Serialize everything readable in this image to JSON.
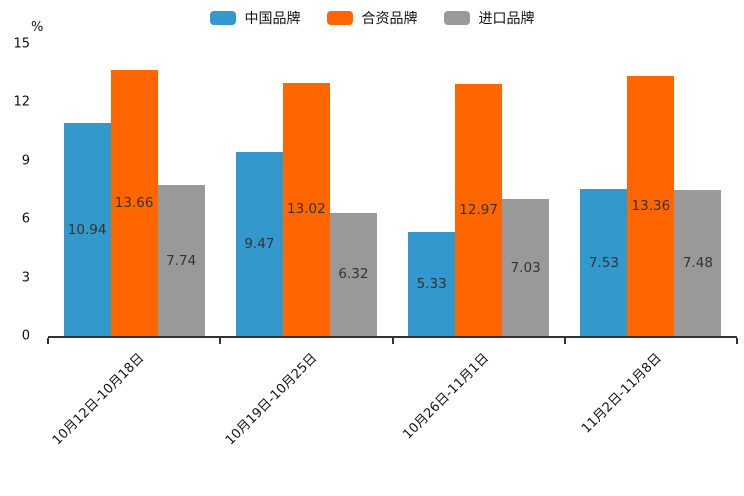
{
  "figure": {
    "background": "#ffffff",
    "axis_color": "#333333",
    "percent_label": "%"
  },
  "legend": {
    "items": [
      {
        "label": "中国品牌",
        "color": "#3398cc"
      },
      {
        "label": "合资品牌",
        "color": "#ff6600"
      },
      {
        "label": "进口品牌",
        "color": "#999999"
      }
    ]
  },
  "chart_data": {
    "type": "bar",
    "title": "",
    "categories": [
      "10月12日-10月18日",
      "10月19日-10月25日",
      "10月26日-11月1日",
      "11月2日-11月8日"
    ],
    "series": [
      {
        "name": "中国品牌",
        "color": "#3398cc",
        "values": [
          10.94,
          9.47,
          5.33,
          7.53
        ]
      },
      {
        "name": "合资品牌",
        "color": "#ff6600",
        "values": [
          13.66,
          13.02,
          12.97,
          13.36
        ]
      },
      {
        "name": "进口品牌",
        "color": "#999999",
        "values": [
          7.74,
          6.32,
          7.03,
          7.48
        ]
      }
    ],
    "xlabel": "",
    "ylabel": "%",
    "ylim": [
      0,
      15
    ],
    "yticks": [
      0,
      3,
      6,
      9,
      12,
      15
    ],
    "grid": false,
    "legend_position": "top",
    "value_labels": "inside-center",
    "value_label_color": "#333333",
    "xtick_label_rotation": -45
  }
}
